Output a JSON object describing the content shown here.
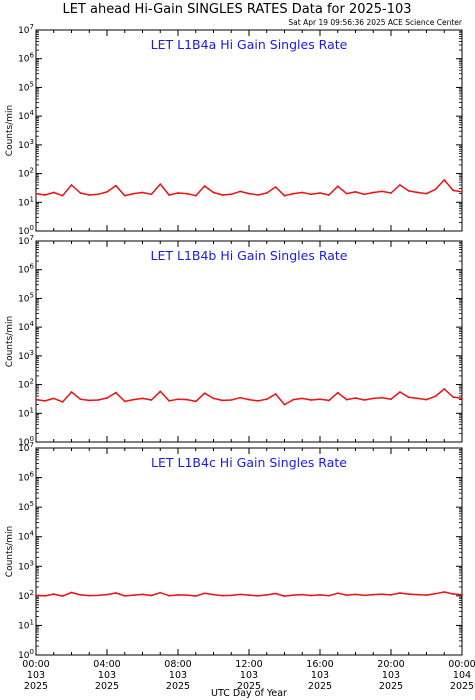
{
  "figure": {
    "title": "LET ahead Hi-Gain SINGLES RATES Data for 2025-103",
    "timestamp": "Sat Apr 19 09:56:36 2025 ACE Science Center",
    "xlabel": "UTC Day of Year"
  },
  "chart_data": [
    {
      "type": "line",
      "title": "LET L1B4a Hi Gain Singles Rate",
      "ylabel": "Counts/min",
      "yscale": "log",
      "ylim": [
        1,
        10000000
      ],
      "xlim": [
        0,
        24
      ],
      "x_ticks": [
        {
          "time": "00:00",
          "doy": "103",
          "year": "2025"
        },
        {
          "time": "04:00",
          "doy": "103",
          "year": "2025"
        },
        {
          "time": "08:00",
          "doy": "103",
          "year": "2025"
        },
        {
          "time": "12:00",
          "doy": "103",
          "year": "2025"
        },
        {
          "time": "16:00",
          "doy": "103",
          "year": "2025"
        },
        {
          "time": "20:00",
          "doy": "103",
          "year": "2025"
        },
        {
          "time": "00:00",
          "doy": "104",
          "year": "2025"
        }
      ],
      "series": [
        {
          "color": "#ee1111",
          "x": [
            0,
            0.5,
            1,
            1.5,
            2,
            2.5,
            3,
            3.5,
            4,
            4.5,
            5,
            5.5,
            6,
            6.5,
            7,
            7.5,
            8,
            8.5,
            9,
            9.5,
            10,
            10.5,
            11,
            11.5,
            12,
            12.5,
            13,
            13.5,
            14,
            14.5,
            15,
            15.5,
            16,
            16.5,
            17,
            17.5,
            18,
            18.5,
            19,
            19.5,
            20,
            20.5,
            21,
            21.5,
            22,
            22.5,
            23,
            23.5,
            24
          ],
          "values": [
            20,
            18,
            22,
            17,
            40,
            21,
            18,
            19,
            23,
            38,
            17,
            20,
            22,
            19,
            43,
            18,
            21,
            20,
            17,
            37,
            22,
            18,
            19,
            24,
            20,
            18,
            21,
            34,
            17,
            20,
            22,
            19,
            21,
            18,
            36,
            20,
            23,
            19,
            22,
            24,
            21,
            40,
            25,
            22,
            20,
            28,
            60,
            26,
            23
          ]
        }
      ]
    },
    {
      "type": "line",
      "title": "LET L1B4b Hi Gain Singles Rate",
      "ylabel": "Counts/min",
      "yscale": "log",
      "ylim": [
        1,
        10000000
      ],
      "xlim": [
        0,
        24
      ],
      "x_ticks": [
        {
          "time": "00:00",
          "doy": "103",
          "year": "2025"
        },
        {
          "time": "04:00",
          "doy": "103",
          "year": "2025"
        },
        {
          "time": "08:00",
          "doy": "103",
          "year": "2025"
        },
        {
          "time": "12:00",
          "doy": "103",
          "year": "2025"
        },
        {
          "time": "16:00",
          "doy": "103",
          "year": "2025"
        },
        {
          "time": "20:00",
          "doy": "103",
          "year": "2025"
        },
        {
          "time": "00:00",
          "doy": "104",
          "year": "2025"
        }
      ],
      "series": [
        {
          "color": "#ee1111",
          "x": [
            0,
            0.5,
            1,
            1.5,
            2,
            2.5,
            3,
            3.5,
            4,
            4.5,
            5,
            5.5,
            6,
            6.5,
            7,
            7.5,
            8,
            8.5,
            9,
            9.5,
            10,
            10.5,
            11,
            11.5,
            12,
            12.5,
            13,
            13.5,
            14,
            14.5,
            15,
            15.5,
            16,
            16.5,
            17,
            17.5,
            18,
            18.5,
            19,
            19.5,
            20,
            20.5,
            21,
            21.5,
            22,
            22.5,
            23,
            23.5,
            24
          ],
          "values": [
            30,
            27,
            33,
            25,
            55,
            31,
            28,
            29,
            34,
            52,
            26,
            30,
            33,
            29,
            58,
            27,
            31,
            30,
            26,
            50,
            33,
            28,
            29,
            35,
            30,
            27,
            31,
            47,
            20,
            30,
            33,
            29,
            31,
            28,
            52,
            30,
            34,
            29,
            33,
            35,
            31,
            55,
            36,
            33,
            30,
            39,
            70,
            37,
            33
          ]
        }
      ]
    },
    {
      "type": "line",
      "title": "LET L1B4c Hi Gain Singles Rate",
      "ylabel": "Counts/min",
      "yscale": "log",
      "ylim": [
        1,
        10000000
      ],
      "xlim": [
        0,
        24
      ],
      "x_ticks": [
        {
          "time": "00:00",
          "doy": "103",
          "year": "2025"
        },
        {
          "time": "04:00",
          "doy": "103",
          "year": "2025"
        },
        {
          "time": "08:00",
          "doy": "103",
          "year": "2025"
        },
        {
          "time": "12:00",
          "doy": "103",
          "year": "2025"
        },
        {
          "time": "16:00",
          "doy": "103",
          "year": "2025"
        },
        {
          "time": "20:00",
          "doy": "103",
          "year": "2025"
        },
        {
          "time": "00:00",
          "doy": "104",
          "year": "2025"
        }
      ],
      "series": [
        {
          "color": "#ee1111",
          "x": [
            0,
            0.5,
            1,
            1.5,
            2,
            2.5,
            3,
            3.5,
            4,
            4.5,
            5,
            5.5,
            6,
            6.5,
            7,
            7.5,
            8,
            8.5,
            9,
            9.5,
            10,
            10.5,
            11,
            11.5,
            12,
            12.5,
            13,
            13.5,
            14,
            14.5,
            15,
            15.5,
            16,
            16.5,
            17,
            17.5,
            18,
            18.5,
            19,
            19.5,
            20,
            20.5,
            21,
            21.5,
            22,
            22.5,
            23,
            23.5,
            24
          ],
          "values": [
            105,
            100,
            115,
            98,
            130,
            108,
            102,
            104,
            110,
            125,
            100,
            106,
            112,
            103,
            128,
            101,
            108,
            106,
            99,
            122,
            110,
            102,
            104,
            112,
            106,
            100,
            108,
            120,
            98,
            106,
            110,
            103,
            108,
            101,
            123,
            106,
            112,
            104,
            110,
            114,
            108,
            125,
            115,
            110,
            106,
            118,
            135,
            116,
            110
          ]
        }
      ]
    }
  ]
}
